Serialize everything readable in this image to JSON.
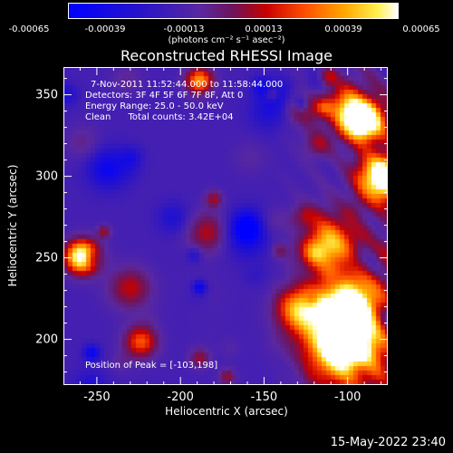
{
  "colorbar": {
    "tick_labels": [
      "-0.00065",
      "-0.00039",
      "-0.00013",
      "0.00013",
      "0.00039",
      "0.00065"
    ],
    "units_label": "(photons cm⁻² s⁻¹ asec⁻²)"
  },
  "chart_data": {
    "type": "heatmap",
    "title": "Reconstructed RHESSI Image",
    "xlabel": "Heliocentric X (arcsec)",
    "ylabel": "Heliocentric Y (arcsec)",
    "xlim": [
      -270,
      -76
    ],
    "ylim": [
      172,
      367
    ],
    "x_ticks": [
      -250,
      -200,
      -150,
      -100
    ],
    "y_ticks": [
      200,
      250,
      300,
      350
    ],
    "x_tick_labels": [
      "-250",
      "-200",
      "-150",
      "-100"
    ],
    "y_tick_labels": [
      "200",
      "250",
      "300",
      "350"
    ],
    "value_range": [
      -0.00065,
      0.00065
    ],
    "colormap": "rhessi-blue-red-yellow",
    "peak_position": [
      -103,
      198
    ],
    "annotations": {
      "time_range": "7-Nov-2011 11:52:44.000 to 11:58:44.000",
      "detectors": "Detectors: 3F 4F 5F 6F 7F 8F, Att 0",
      "energy_range": "Energy Range: 25.0 - 50.0 keV",
      "clean_info": "Clean      Total counts: 3.42E+04",
      "peak_text": "Position of Peak = [-103,198]"
    }
  },
  "footer": {
    "timestamp": "15-May-2022 23:40"
  }
}
